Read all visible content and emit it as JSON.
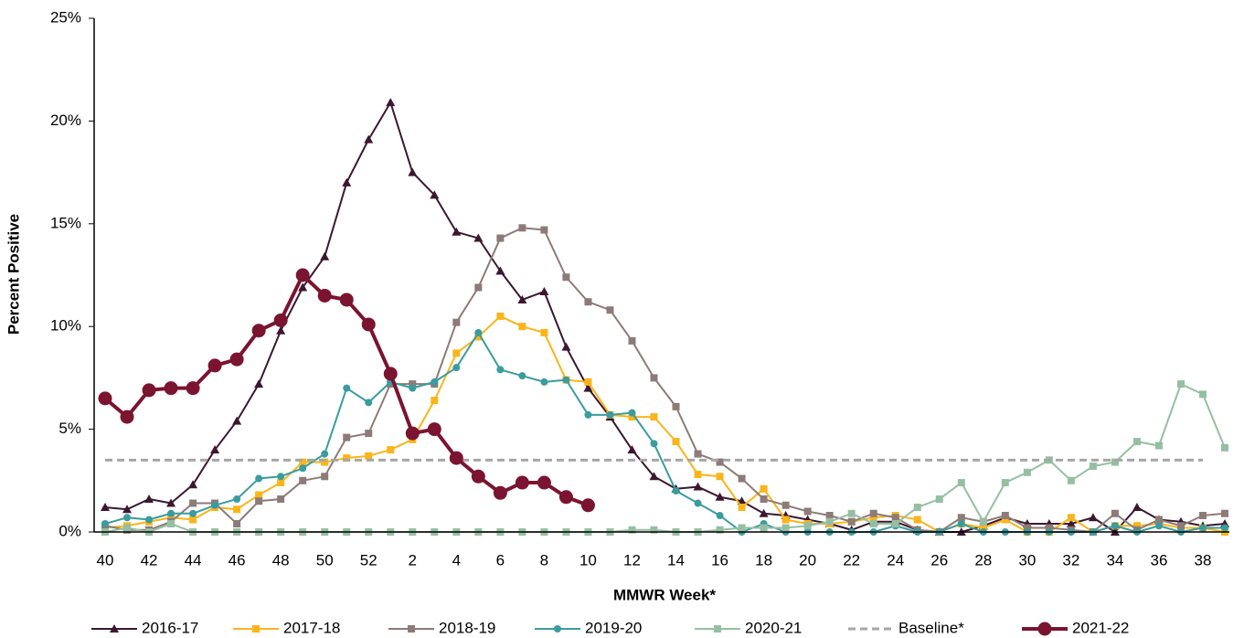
{
  "chart_data": {
    "type": "line",
    "x_label": "MMWR Week*",
    "y_label": "Percent Positive",
    "categories": [
      "40",
      null,
      "42",
      null,
      "44",
      null,
      "46",
      null,
      "48",
      null,
      "50",
      null,
      "52",
      null,
      "2",
      null,
      "4",
      null,
      "6",
      null,
      "8",
      null,
      "10",
      null,
      "12",
      null,
      "14",
      null,
      "16",
      null,
      "18",
      null,
      "20",
      null,
      "22",
      null,
      "24",
      null,
      "26",
      null,
      "28",
      null,
      "30",
      null,
      "32",
      null,
      "34",
      null,
      "36",
      null,
      "38",
      null
    ],
    "ylim": [
      0,
      25
    ],
    "yticks": [
      {
        "value": 0,
        "label": "0%"
      },
      {
        "value": 5,
        "label": "5%"
      },
      {
        "value": 10,
        "label": "10%"
      },
      {
        "value": 15,
        "label": "15%"
      },
      {
        "value": 20,
        "label": "20%"
      },
      {
        "value": 25,
        "label": "25%"
      }
    ],
    "grid": false,
    "legend": "bottom",
    "series": [
      {
        "name": "2016-17",
        "color": "#3b1830",
        "marker": "triangle",
        "width": 2,
        "values": [
          1.2,
          1.1,
          1.6,
          1.4,
          2.3,
          4.0,
          5.4,
          7.2,
          9.8,
          11.9,
          13.4,
          17.0,
          19.1,
          20.9,
          17.5,
          16.4,
          14.6,
          14.3,
          12.7,
          11.3,
          11.7,
          9.0,
          7.0,
          5.6,
          4.0,
          2.7,
          2.1,
          2.2,
          1.7,
          1.5,
          0.9,
          0.8,
          0.6,
          0.4,
          0.1,
          0.5,
          0.5,
          0.1,
          0.0,
          0.0,
          0.3,
          0.7,
          0.4,
          0.4,
          0.4,
          0.7,
          0.0,
          1.2,
          0.6,
          0.5,
          0.3,
          0.4
        ]
      },
      {
        "name": "2017-18",
        "color": "#f9b51a",
        "marker": "square",
        "width": 2,
        "values": [
          0.2,
          0.3,
          0.5,
          0.7,
          0.6,
          1.2,
          1.1,
          1.8,
          2.4,
          3.4,
          3.4,
          3.6,
          3.7,
          4.0,
          4.5,
          6.4,
          8.7,
          9.5,
          10.5,
          10.0,
          9.7,
          7.4,
          7.3,
          5.7,
          5.6,
          5.6,
          4.4,
          2.8,
          2.7,
          1.2,
          2.1,
          0.6,
          0.4,
          0.4,
          0.5,
          0.7,
          0.8,
          0.6,
          0.0,
          0.4,
          0.2,
          0.6,
          0.0,
          0.0,
          0.7,
          0.0,
          0.3,
          0.3,
          0.4,
          0.2,
          0.2,
          0.0
        ]
      },
      {
        "name": "2018-19",
        "color": "#8c7b78",
        "marker": "square",
        "width": 2,
        "values": [
          0.3,
          0.1,
          0.1,
          0.5,
          1.4,
          1.4,
          0.4,
          1.5,
          1.6,
          2.5,
          2.7,
          4.6,
          4.8,
          7.2,
          7.2,
          7.2,
          10.2,
          11.9,
          14.3,
          14.8,
          14.7,
          12.4,
          11.2,
          10.8,
          9.3,
          7.5,
          6.1,
          3.8,
          3.4,
          2.6,
          1.6,
          1.3,
          1.0,
          0.8,
          0.5,
          0.9,
          0.7,
          0.1,
          0.0,
          0.7,
          0.5,
          0.8,
          0.2,
          0.2,
          0.1,
          0.0,
          0.9,
          0.1,
          0.6,
          0.3,
          0.8,
          0.9
        ]
      },
      {
        "name": "2019-20",
        "color": "#3a9c9e",
        "marker": "circle",
        "width": 2,
        "values": [
          0.4,
          0.7,
          0.6,
          0.9,
          0.9,
          1.3,
          1.6,
          2.6,
          2.7,
          3.1,
          3.8,
          7.0,
          6.3,
          7.3,
          7.0,
          7.3,
          8.0,
          9.7,
          7.9,
          7.6,
          7.3,
          7.4,
          5.7,
          5.7,
          5.8,
          4.3,
          2.0,
          1.4,
          0.8,
          0.0,
          0.4,
          0.0,
          0.0,
          0.0,
          0.0,
          0.0,
          0.3,
          0.0,
          0.0,
          0.4,
          0.0,
          0.0,
          0.0,
          0.0,
          0.0,
          0.0,
          0.3,
          0.0,
          0.3,
          0.0,
          0.2,
          0.2
        ]
      },
      {
        "name": "2020-21",
        "color": "#95bfa3",
        "marker": "square",
        "width": 2,
        "values": [
          0.0,
          0.2,
          0.0,
          0.4,
          0.0,
          0.0,
          0.0,
          0.0,
          0.0,
          0.0,
          0.0,
          0.0,
          0.0,
          0.0,
          0.0,
          0.0,
          0.0,
          0.0,
          0.0,
          0.0,
          0.0,
          0.0,
          0.0,
          0.0,
          0.1,
          0.1,
          0.0,
          0.0,
          0.1,
          0.2,
          0.2,
          0.2,
          0.3,
          0.5,
          0.9,
          0.4,
          0.4,
          1.2,
          1.6,
          2.4,
          0.5,
          2.4,
          2.9,
          3.5,
          2.5,
          3.2,
          3.4,
          4.4,
          4.2,
          7.2,
          6.7,
          4.1
        ]
      },
      {
        "name": "Baseline*",
        "color": "#a6a6a6",
        "marker": "none",
        "dash": true,
        "width": 3,
        "values": [
          3.5,
          3.5,
          3.5,
          3.5,
          3.5,
          3.5,
          3.5,
          3.5,
          3.5,
          3.5,
          3.5,
          3.5,
          3.5,
          3.5,
          3.5,
          3.5,
          3.5,
          3.5,
          3.5,
          3.5,
          3.5,
          3.5,
          3.5,
          3.5,
          3.5,
          3.5,
          3.5,
          3.5,
          3.5,
          3.5,
          3.5,
          3.5,
          3.5,
          3.5,
          3.5,
          3.5,
          3.5,
          3.5,
          3.5,
          3.5,
          3.5,
          3.5,
          3.5,
          3.5,
          3.5,
          3.5,
          3.5,
          3.5,
          3.5,
          3.5,
          3.5,
          null
        ]
      },
      {
        "name": "2021-22",
        "color": "#7b1430",
        "marker": "bigcircle",
        "width": 4,
        "values": [
          6.5,
          5.6,
          6.9,
          7.0,
          7.0,
          8.1,
          8.4,
          9.8,
          10.3,
          12.5,
          11.5,
          11.3,
          10.1,
          7.7,
          4.8,
          5.0,
          3.6,
          2.7,
          1.9,
          2.4,
          2.4,
          1.7,
          1.3,
          null,
          null,
          null,
          null,
          null,
          null,
          null,
          null,
          null,
          null,
          null,
          null,
          null,
          null,
          null,
          null,
          null,
          null,
          null,
          null,
          null,
          null,
          null,
          null,
          null,
          null,
          null,
          null,
          null
        ]
      }
    ]
  }
}
